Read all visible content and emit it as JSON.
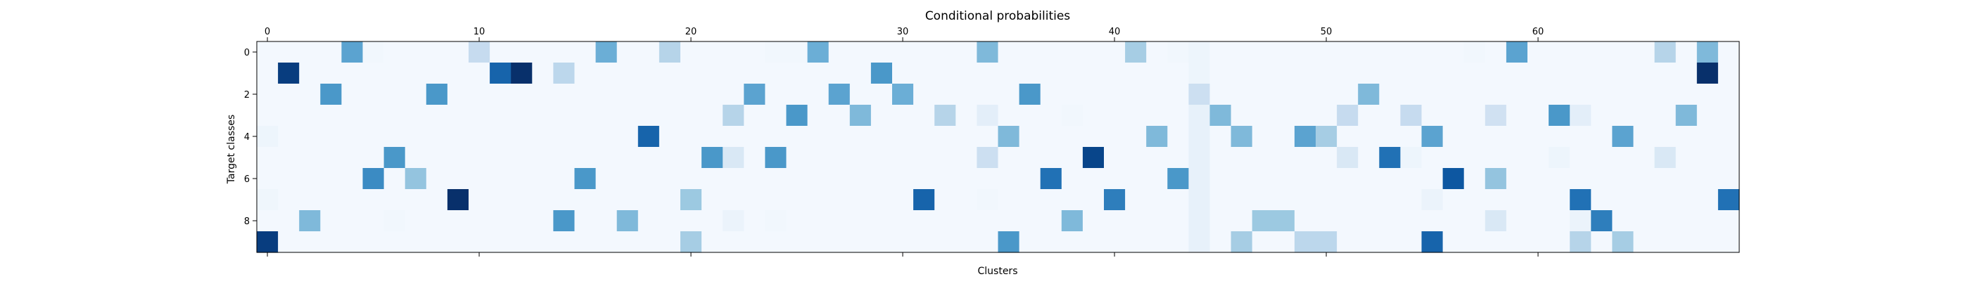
{
  "chart_data": {
    "type": "heatmap",
    "title": "Conditional probabilities",
    "xlabel": "Clusters",
    "ylabel": "Target classes",
    "x_ticks": [
      0,
      10,
      20,
      30,
      40,
      50,
      60
    ],
    "y_ticks": [
      0,
      2,
      4,
      6,
      8
    ],
    "n_cols": 70,
    "n_rows": 10,
    "value_range": [
      0,
      1
    ],
    "colormap": "Blues",
    "grid": false,
    "row_values": [
      [
        0.02,
        0.02,
        0.02,
        0.02,
        0.55,
        0.03,
        0.02,
        0.02,
        0.02,
        0.02,
        0.25,
        0.02,
        0.02,
        0.02,
        0.02,
        0.02,
        0.5,
        0.02,
        0.02,
        0.3,
        0.02,
        0.02,
        0.02,
        0.02,
        0.03,
        0.03,
        0.5,
        0.02,
        0.02,
        0.02,
        0.02,
        0.02,
        0.02,
        0.02,
        0.45,
        0.02,
        0.02,
        0.02,
        0.02,
        0.02,
        0.02,
        0.35,
        0.02,
        0.03,
        0.05,
        0.02,
        0.02,
        0.02,
        0.02,
        0.02,
        0.02,
        0.02,
        0.02,
        0.02,
        0.02,
        0.02,
        0.02,
        0.03,
        0.02,
        0.55,
        0.02,
        0.02,
        0.02,
        0.02,
        0.02,
        0.02,
        0.3,
        0.02,
        0.45,
        0.02
      ],
      [
        0.02,
        0.95,
        0.02,
        0.02,
        0.02,
        0.02,
        0.02,
        0.02,
        0.02,
        0.02,
        0.02,
        0.8,
        1.0,
        0.02,
        0.28,
        0.02,
        0.02,
        0.02,
        0.02,
        0.02,
        0.02,
        0.02,
        0.02,
        0.02,
        0.02,
        0.02,
        0.02,
        0.02,
        0.02,
        0.6,
        0.02,
        0.02,
        0.02,
        0.02,
        0.02,
        0.02,
        0.02,
        0.02,
        0.02,
        0.02,
        0.02,
        0.02,
        0.02,
        0.02,
        0.05,
        0.02,
        0.02,
        0.02,
        0.02,
        0.02,
        0.02,
        0.02,
        0.02,
        0.02,
        0.02,
        0.02,
        0.02,
        0.02,
        0.02,
        0.02,
        0.02,
        0.02,
        0.02,
        0.02,
        0.02,
        0.02,
        0.02,
        0.02,
        1.0,
        0.02
      ],
      [
        0.02,
        0.02,
        0.02,
        0.6,
        0.02,
        0.02,
        0.02,
        0.02,
        0.6,
        0.02,
        0.02,
        0.02,
        0.02,
        0.02,
        0.02,
        0.02,
        0.02,
        0.02,
        0.02,
        0.02,
        0.02,
        0.02,
        0.02,
        0.55,
        0.02,
        0.02,
        0.02,
        0.55,
        0.02,
        0.02,
        0.5,
        0.02,
        0.02,
        0.02,
        0.02,
        0.02,
        0.6,
        0.02,
        0.02,
        0.02,
        0.02,
        0.02,
        0.02,
        0.02,
        0.22,
        0.02,
        0.02,
        0.02,
        0.02,
        0.02,
        0.02,
        0.02,
        0.45,
        0.02,
        0.02,
        0.02,
        0.02,
        0.02,
        0.02,
        0.02,
        0.02,
        0.02,
        0.02,
        0.02,
        0.02,
        0.02,
        0.02,
        0.02,
        0.02,
        0.02
      ],
      [
        0.02,
        0.02,
        0.02,
        0.02,
        0.02,
        0.02,
        0.02,
        0.02,
        0.02,
        0.02,
        0.02,
        0.02,
        0.02,
        0.02,
        0.02,
        0.02,
        0.02,
        0.02,
        0.02,
        0.02,
        0.02,
        0.02,
        0.3,
        0.02,
        0.02,
        0.6,
        0.02,
        0.02,
        0.45,
        0.02,
        0.02,
        0.02,
        0.3,
        0.02,
        0.1,
        0.02,
        0.02,
        0.02,
        0.03,
        0.02,
        0.02,
        0.02,
        0.02,
        0.02,
        0.08,
        0.45,
        0.02,
        0.02,
        0.02,
        0.02,
        0.02,
        0.25,
        0.02,
        0.02,
        0.25,
        0.02,
        0.02,
        0.02,
        0.2,
        0.02,
        0.02,
        0.6,
        0.1,
        0.02,
        0.02,
        0.02,
        0.02,
        0.45,
        0.02,
        0.02
      ],
      [
        0.05,
        0.02,
        0.02,
        0.02,
        0.02,
        0.02,
        0.02,
        0.02,
        0.02,
        0.02,
        0.02,
        0.02,
        0.02,
        0.02,
        0.02,
        0.02,
        0.02,
        0.02,
        0.8,
        0.02,
        0.02,
        0.02,
        0.02,
        0.02,
        0.02,
        0.02,
        0.02,
        0.02,
        0.02,
        0.02,
        0.02,
        0.02,
        0.02,
        0.02,
        0.02,
        0.45,
        0.02,
        0.02,
        0.02,
        0.02,
        0.02,
        0.02,
        0.45,
        0.02,
        0.08,
        0.02,
        0.45,
        0.02,
        0.02,
        0.55,
        0.35,
        0.02,
        0.02,
        0.02,
        0.02,
        0.55,
        0.02,
        0.02,
        0.02,
        0.02,
        0.02,
        0.02,
        0.02,
        0.02,
        0.55,
        0.02,
        0.02,
        0.02,
        0.02,
        0.02
      ],
      [
        0.02,
        0.02,
        0.02,
        0.02,
        0.02,
        0.02,
        0.6,
        0.02,
        0.02,
        0.02,
        0.02,
        0.02,
        0.02,
        0.02,
        0.02,
        0.02,
        0.02,
        0.02,
        0.02,
        0.02,
        0.02,
        0.6,
        0.15,
        0.02,
        0.6,
        0.02,
        0.02,
        0.02,
        0.02,
        0.02,
        0.02,
        0.02,
        0.02,
        0.02,
        0.22,
        0.02,
        0.02,
        0.02,
        0.02,
        0.92,
        0.02,
        0.02,
        0.02,
        0.02,
        0.08,
        0.02,
        0.02,
        0.02,
        0.02,
        0.02,
        0.02,
        0.15,
        0.02,
        0.75,
        0.05,
        0.02,
        0.02,
        0.02,
        0.02,
        0.02,
        0.02,
        0.05,
        0.02,
        0.02,
        0.02,
        0.02,
        0.15,
        0.02,
        0.02,
        0.02
      ],
      [
        0.02,
        0.02,
        0.02,
        0.02,
        0.02,
        0.65,
        0.02,
        0.4,
        0.02,
        0.02,
        0.02,
        0.02,
        0.02,
        0.02,
        0.02,
        0.6,
        0.02,
        0.02,
        0.02,
        0.02,
        0.02,
        0.02,
        0.02,
        0.02,
        0.02,
        0.02,
        0.02,
        0.02,
        0.02,
        0.02,
        0.02,
        0.02,
        0.02,
        0.02,
        0.02,
        0.02,
        0.02,
        0.75,
        0.02,
        0.02,
        0.02,
        0.02,
        0.02,
        0.6,
        0.08,
        0.02,
        0.02,
        0.02,
        0.02,
        0.02,
        0.02,
        0.02,
        0.02,
        0.02,
        0.02,
        0.02,
        0.85,
        0.02,
        0.4,
        0.02,
        0.02,
        0.02,
        0.02,
        0.02,
        0.02,
        0.02,
        0.02,
        0.02,
        0.02,
        0.02
      ],
      [
        0.04,
        0.02,
        0.02,
        0.02,
        0.02,
        0.02,
        0.02,
        0.02,
        0.02,
        1.0,
        0.02,
        0.02,
        0.02,
        0.02,
        0.02,
        0.02,
        0.02,
        0.02,
        0.02,
        0.02,
        0.38,
        0.02,
        0.02,
        0.02,
        0.02,
        0.02,
        0.02,
        0.02,
        0.02,
        0.02,
        0.02,
        0.8,
        0.02,
        0.02,
        0.03,
        0.02,
        0.02,
        0.02,
        0.02,
        0.02,
        0.7,
        0.02,
        0.02,
        0.02,
        0.08,
        0.02,
        0.02,
        0.02,
        0.02,
        0.02,
        0.02,
        0.02,
        0.02,
        0.02,
        0.02,
        0.06,
        0.02,
        0.02,
        0.02,
        0.02,
        0.02,
        0.02,
        0.75,
        0.02,
        0.02,
        0.02,
        0.02,
        0.02,
        0.02,
        0.75
      ],
      [
        0.02,
        0.02,
        0.45,
        0.02,
        0.02,
        0.02,
        0.03,
        0.02,
        0.02,
        0.02,
        0.02,
        0.02,
        0.02,
        0.02,
        0.6,
        0.02,
        0.02,
        0.45,
        0.02,
        0.02,
        0.02,
        0.02,
        0.06,
        0.02,
        0.03,
        0.02,
        0.02,
        0.02,
        0.02,
        0.02,
        0.02,
        0.02,
        0.02,
        0.02,
        0.02,
        0.02,
        0.02,
        0.02,
        0.45,
        0.02,
        0.02,
        0.02,
        0.02,
        0.02,
        0.08,
        0.02,
        0.02,
        0.38,
        0.38,
        0.02,
        0.02,
        0.02,
        0.02,
        0.02,
        0.02,
        0.02,
        0.02,
        0.02,
        0.15,
        0.02,
        0.02,
        0.02,
        0.06,
        0.7,
        0.02,
        0.02,
        0.02,
        0.02,
        0.02,
        0.02
      ],
      [
        0.95,
        0.02,
        0.02,
        0.02,
        0.02,
        0.02,
        0.02,
        0.02,
        0.02,
        0.02,
        0.02,
        0.02,
        0.02,
        0.02,
        0.02,
        0.02,
        0.02,
        0.02,
        0.02,
        0.02,
        0.35,
        0.02,
        0.02,
        0.02,
        0.02,
        0.02,
        0.02,
        0.02,
        0.02,
        0.02,
        0.02,
        0.02,
        0.02,
        0.02,
        0.02,
        0.6,
        0.02,
        0.02,
        0.02,
        0.02,
        0.02,
        0.02,
        0.02,
        0.02,
        0.08,
        0.02,
        0.35,
        0.02,
        0.02,
        0.28,
        0.28,
        0.02,
        0.02,
        0.02,
        0.02,
        0.8,
        0.02,
        0.02,
        0.02,
        0.02,
        0.02,
        0.02,
        0.3,
        0.02,
        0.35,
        0.02,
        0.02,
        0.02,
        0.02,
        0.02
      ]
    ]
  }
}
